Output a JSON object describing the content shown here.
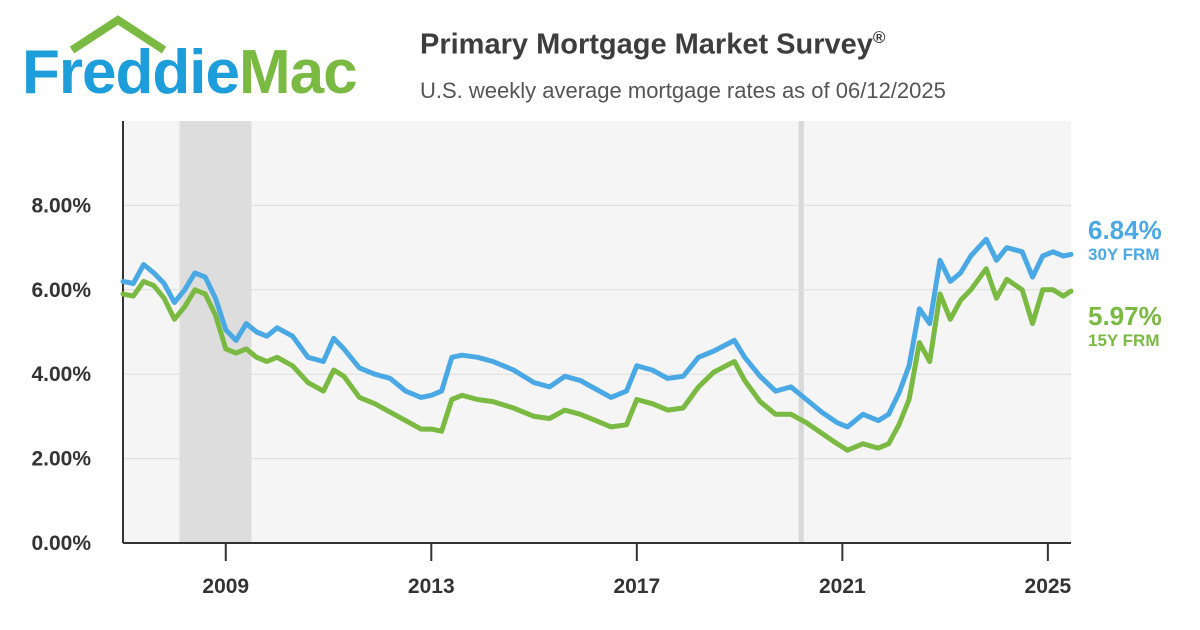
{
  "header": {
    "logo_freddie": "Freddie",
    "logo_mac": "Mac",
    "title": "Primary Mortgage Market Survey",
    "title_mark": "®",
    "subtitle": "U.S. weekly average mortgage rates as of 06/12/2025"
  },
  "colors": {
    "frm30": "#4aa8e4",
    "frm15": "#7ab942",
    "recession_band": "#dddddd",
    "plot_bg": "#f5f5f5",
    "grid": "#dddddd",
    "axis": "#333333",
    "logo_blue": "#1e9ddb",
    "logo_green": "#7ab942"
  },
  "latest": {
    "frm30_value": "6.84%",
    "frm30_label": "30Y FRM",
    "frm15_value": "5.97%",
    "frm15_label": "15Y FRM"
  },
  "chart_data": {
    "type": "line",
    "title": "Primary Mortgage Market Survey®",
    "subtitle": "U.S. weekly average mortgage rates as of 06/12/2025",
    "xlim": [
      2007.0,
      2025.45
    ],
    "ylim": [
      0,
      10
    ],
    "yticks": [
      0,
      2,
      4,
      6,
      8
    ],
    "ytick_labels": [
      "0.00%",
      "2.00%",
      "4.00%",
      "6.00%",
      "8.00%"
    ],
    "xticks": [
      2009,
      2013,
      2017,
      2021,
      2025
    ],
    "xtick_labels": [
      "2009",
      "2013",
      "2017",
      "2021",
      "2025"
    ],
    "grid": true,
    "shaded_periods": [
      {
        "start": 2008.1,
        "end": 2009.5,
        "kind": "band"
      },
      {
        "start": 2020.15,
        "end": 2020.25,
        "kind": "line"
      }
    ],
    "series": [
      {
        "name": "30Y FRM",
        "x": [
          2007.0,
          2007.2,
          2007.4,
          2007.6,
          2007.8,
          2008.0,
          2008.2,
          2008.4,
          2008.6,
          2008.8,
          2009.0,
          2009.2,
          2009.4,
          2009.6,
          2009.8,
          2010.0,
          2010.3,
          2010.6,
          2010.9,
          2011.1,
          2011.3,
          2011.6,
          2011.9,
          2012.2,
          2012.5,
          2012.8,
          2013.0,
          2013.2,
          2013.4,
          2013.6,
          2013.9,
          2014.2,
          2014.6,
          2015.0,
          2015.3,
          2015.6,
          2015.9,
          2016.2,
          2016.5,
          2016.8,
          2017.0,
          2017.3,
          2017.6,
          2017.9,
          2018.2,
          2018.5,
          2018.9,
          2019.1,
          2019.4,
          2019.7,
          2020.0,
          2020.3,
          2020.6,
          2020.9,
          2021.1,
          2021.4,
          2021.7,
          2021.9,
          2022.1,
          2022.3,
          2022.5,
          2022.7,
          2022.9,
          2023.1,
          2023.3,
          2023.5,
          2023.8,
          2024.0,
          2024.2,
          2024.5,
          2024.7,
          2024.9,
          2025.1,
          2025.3,
          2025.45
        ],
        "values": [
          6.2,
          6.15,
          6.6,
          6.4,
          6.15,
          5.7,
          6.0,
          6.4,
          6.3,
          5.8,
          5.05,
          4.8,
          5.2,
          5.0,
          4.9,
          5.1,
          4.9,
          4.4,
          4.3,
          4.85,
          4.6,
          4.15,
          4.0,
          3.9,
          3.6,
          3.45,
          3.5,
          3.6,
          4.4,
          4.45,
          4.4,
          4.3,
          4.1,
          3.8,
          3.7,
          3.95,
          3.85,
          3.65,
          3.45,
          3.6,
          4.2,
          4.1,
          3.9,
          3.95,
          4.4,
          4.55,
          4.8,
          4.4,
          3.95,
          3.6,
          3.7,
          3.4,
          3.1,
          2.85,
          2.75,
          3.05,
          2.9,
          3.05,
          3.55,
          4.2,
          5.55,
          5.2,
          6.7,
          6.2,
          6.4,
          6.8,
          7.2,
          6.7,
          7.0,
          6.9,
          6.3,
          6.8,
          6.9,
          6.8,
          6.84
        ]
      },
      {
        "name": "15Y FRM",
        "x": [
          2007.0,
          2007.2,
          2007.4,
          2007.6,
          2007.8,
          2008.0,
          2008.2,
          2008.4,
          2008.6,
          2008.8,
          2009.0,
          2009.2,
          2009.4,
          2009.6,
          2009.8,
          2010.0,
          2010.3,
          2010.6,
          2010.9,
          2011.1,
          2011.3,
          2011.6,
          2011.9,
          2012.2,
          2012.5,
          2012.8,
          2013.0,
          2013.2,
          2013.4,
          2013.6,
          2013.9,
          2014.2,
          2014.6,
          2015.0,
          2015.3,
          2015.6,
          2015.9,
          2016.2,
          2016.5,
          2016.8,
          2017.0,
          2017.3,
          2017.6,
          2017.9,
          2018.2,
          2018.5,
          2018.9,
          2019.1,
          2019.4,
          2019.7,
          2020.0,
          2020.3,
          2020.6,
          2020.9,
          2021.1,
          2021.4,
          2021.7,
          2021.9,
          2022.1,
          2022.3,
          2022.5,
          2022.7,
          2022.9,
          2023.1,
          2023.3,
          2023.5,
          2023.8,
          2024.0,
          2024.2,
          2024.5,
          2024.7,
          2024.9,
          2025.1,
          2025.3,
          2025.45
        ],
        "values": [
          5.9,
          5.85,
          6.2,
          6.1,
          5.8,
          5.3,
          5.6,
          6.0,
          5.9,
          5.4,
          4.6,
          4.5,
          4.6,
          4.4,
          4.3,
          4.4,
          4.2,
          3.8,
          3.6,
          4.1,
          3.95,
          3.45,
          3.3,
          3.1,
          2.9,
          2.7,
          2.7,
          2.65,
          3.4,
          3.5,
          3.4,
          3.35,
          3.2,
          3.0,
          2.95,
          3.15,
          3.05,
          2.9,
          2.75,
          2.8,
          3.4,
          3.3,
          3.15,
          3.2,
          3.7,
          4.05,
          4.3,
          3.85,
          3.35,
          3.05,
          3.05,
          2.85,
          2.6,
          2.35,
          2.2,
          2.35,
          2.25,
          2.35,
          2.8,
          3.4,
          4.75,
          4.3,
          5.9,
          5.3,
          5.75,
          6.0,
          6.5,
          5.8,
          6.25,
          6.0,
          5.2,
          6.0,
          6.0,
          5.85,
          5.97
        ]
      }
    ]
  }
}
